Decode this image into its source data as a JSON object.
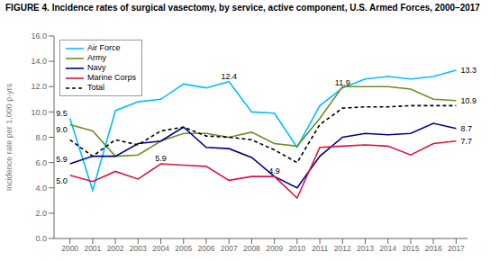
{
  "chart_data": {
    "type": "line",
    "title": "FIGURE 4. Incidence rates of surgical vasectomy, by service, active component, U.S. Armed Forces, 2000–2017",
    "ylabel": "Incidence rate per 1,000 p-yrs",
    "x": [
      2000,
      2001,
      2002,
      2003,
      2004,
      2005,
      2006,
      2007,
      2008,
      2009,
      2010,
      2011,
      2012,
      2013,
      2014,
      2015,
      2016,
      2017
    ],
    "series": [
      {
        "name": "Air Force",
        "color": "#00BFFF",
        "values": [
          9.5,
          3.8,
          10.1,
          10.8,
          11.0,
          12.2,
          11.9,
          12.4,
          10.0,
          9.9,
          7.2,
          10.5,
          11.9,
          12.6,
          12.8,
          12.6,
          12.8,
          13.3
        ]
      },
      {
        "name": "Army",
        "color": "#6B8E23",
        "values": [
          9.0,
          8.5,
          6.5,
          6.6,
          7.7,
          8.3,
          8.3,
          8.0,
          8.4,
          7.5,
          7.3,
          9.5,
          12.0,
          12.0,
          12.0,
          11.8,
          11.0,
          10.9
        ]
      },
      {
        "name": "Navy",
        "color": "#00008B",
        "values": [
          5.9,
          6.5,
          6.5,
          7.5,
          7.7,
          8.8,
          7.2,
          7.1,
          6.4,
          4.9,
          4.0,
          6.5,
          8.0,
          8.3,
          8.2,
          8.3,
          9.1,
          8.7
        ]
      },
      {
        "name": "Marine Corps",
        "color": "#DC143C",
        "values": [
          5.0,
          4.5,
          5.3,
          4.7,
          5.9,
          5.8,
          5.7,
          4.6,
          4.9,
          4.9,
          3.2,
          7.2,
          7.3,
          7.4,
          7.3,
          6.6,
          7.5,
          7.7
        ]
      },
      {
        "name": "Total",
        "color": "#000000",
        "line_style": "dashed",
        "values": [
          7.8,
          6.5,
          7.8,
          7.4,
          8.5,
          8.8,
          8.1,
          8.0,
          7.8,
          7.0,
          6.0,
          9.0,
          10.3,
          10.4,
          10.4,
          10.5,
          10.5,
          10.5
        ]
      }
    ],
    "xlim": [
      1999.3,
      2017.5
    ],
    "xticks": [
      2000,
      2001,
      2002,
      2003,
      2004,
      2005,
      2006,
      2007,
      2008,
      2009,
      2010,
      2011,
      2012,
      2013,
      2014,
      2015,
      2016,
      2017
    ],
    "ylim": [
      0,
      16.0
    ],
    "yticks": [
      {
        "value": 0,
        "label": "0.0"
      },
      {
        "value": 2,
        "label": "2.0"
      },
      {
        "value": 4,
        "label": "4.0"
      },
      {
        "value": 6,
        "label": "6.0"
      },
      {
        "value": 8,
        "label": "8.0"
      },
      {
        "value": 10,
        "label": "10.0"
      },
      {
        "value": 12,
        "label": "12.0"
      },
      {
        "value": 14,
        "label": "14.0"
      },
      {
        "value": 16,
        "label": "16.0"
      }
    ],
    "grid": false,
    "legend": "upper left",
    "annotations": [
      {
        "text": "9.5",
        "x": 2000,
        "y": 9.5
      },
      {
        "text": "9.0",
        "x": 2000,
        "y": 9.0
      },
      {
        "text": "5.9",
        "x": 2000,
        "y": 5.9
      },
      {
        "text": "5.0",
        "x": 2000,
        "y": 5.0
      },
      {
        "text": "12.4",
        "x": 2007,
        "y": 12.4
      },
      {
        "text": "5.9",
        "x": 2004,
        "y": 5.9
      },
      {
        "text": "4.9",
        "x": 2009,
        "y": 4.9
      },
      {
        "text": "11.9",
        "x": 2012,
        "y": 11.9
      },
      {
        "text": "13.3",
        "x": 2017,
        "y": 13.3
      },
      {
        "text": "10.9",
        "x": 2017,
        "y": 10.9
      },
      {
        "text": "8.7",
        "x": 2017,
        "y": 8.7
      },
      {
        "text": "7.7",
        "x": 2017,
        "y": 7.7
      }
    ]
  }
}
